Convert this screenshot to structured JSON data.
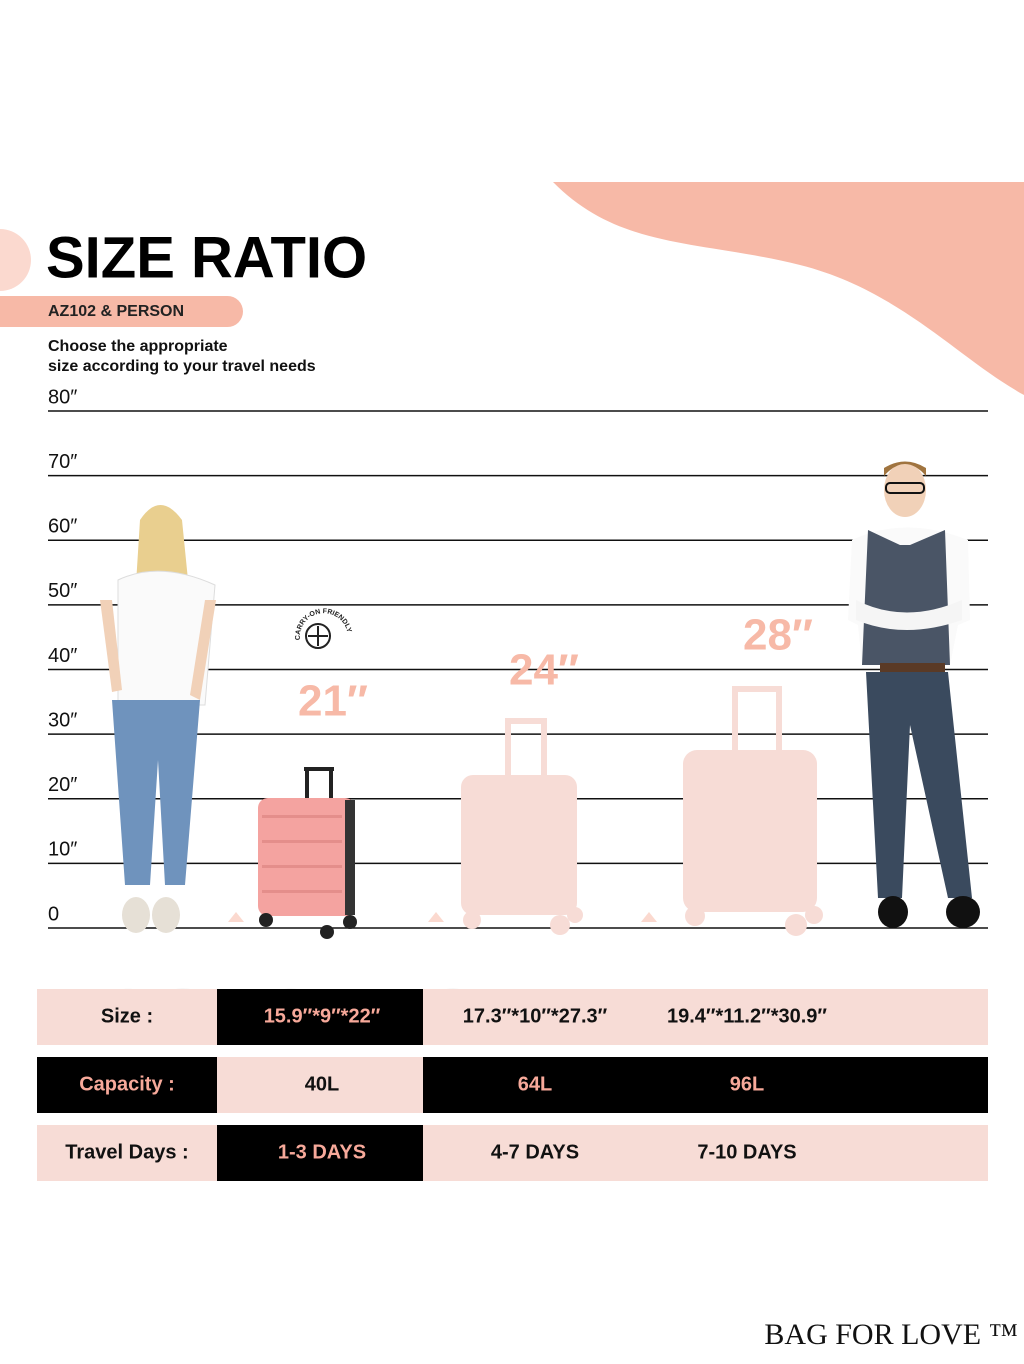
{
  "header": {
    "title": "SIZE RATIO",
    "subtitle": "AZ102 & PERSON",
    "description": [
      "Choose the appropriate",
      "size according to your travel needs"
    ]
  },
  "scale": [
    "80″",
    "70″",
    "60″",
    "50″",
    "40″",
    "30″",
    "20″",
    "10″",
    "0"
  ],
  "badge": "CARRY-ON FRIENDLY",
  "suitcases": [
    "21″",
    "24″",
    "28″"
  ],
  "table": {
    "rows": [
      [
        "Size :",
        "15.9″*9″*22″",
        "17.3″*10″*27.3″",
        "19.4″*11.2″*30.9″"
      ],
      [
        "Capacity :",
        "40L",
        "64L",
        "96L"
      ],
      [
        "Travel Days :",
        "1-3 DAYS",
        "4-7 DAYS",
        "7-10 DAYS"
      ]
    ]
  },
  "watermark": "BAG FOR LOVE™",
  "brand": "BAG FOR LOVE ™"
}
